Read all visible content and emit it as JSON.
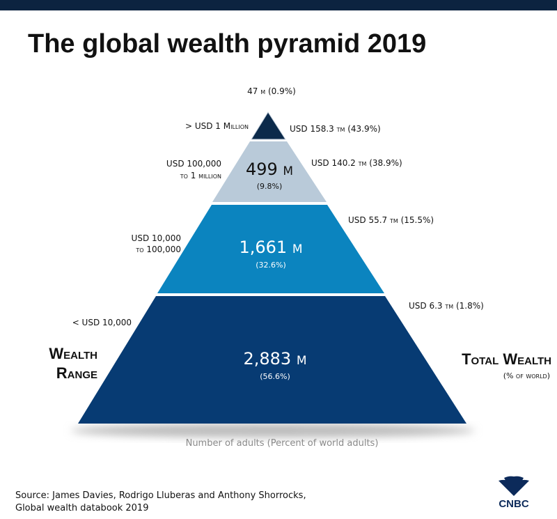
{
  "header": {
    "title": "The global wealth pyramid 2019"
  },
  "tiers": [
    {
      "range": [
        "> USD 1 Million"
      ],
      "adults": "47 m (0.9%)",
      "wealth": "USD 158.3 tm (43.9%)"
    },
    {
      "range": [
        "USD 100,000",
        "to 1 million"
      ],
      "adults": "499 m",
      "percent": "(9.8%)",
      "wealth": "USD 140.2 tm  (38.9%)"
    },
    {
      "range": [
        "USD 10,000",
        "to 100,000"
      ],
      "adults": "1,661 m",
      "percent": "(32.6%)",
      "wealth": "USD 55.7 tm (15.5%)"
    },
    {
      "range": [
        "< USD 10,000"
      ],
      "adults": "2,883 m",
      "percent": "(56.6%)",
      "wealth": "USD 6.3 tm (1.8%)"
    }
  ],
  "left_label": [
    "Wealth",
    "Range"
  ],
  "right_label": {
    "title": "Total Wealth",
    "subtitle": "(% of world)"
  },
  "caption": "Number of adults (Percent of world adults)",
  "source": [
    "Source: James Davies, Rodrigo Lluberas and Anthony Shorrocks,",
    "Global wealth databook 2019"
  ],
  "logo": "CNBC"
}
